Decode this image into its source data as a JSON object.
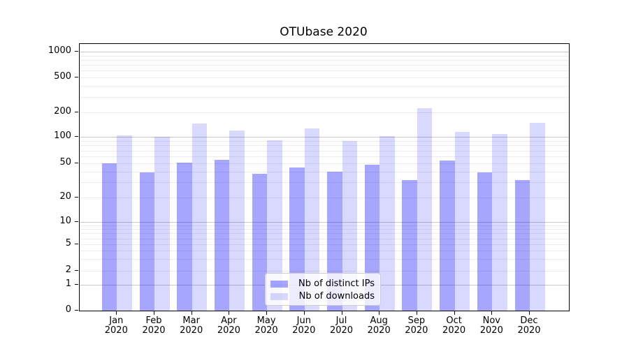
{
  "chart_data": {
    "type": "bar",
    "title": "OTUbase 2020",
    "x_axis": {
      "categories": [
        "Jan",
        "Feb",
        "Mar",
        "Apr",
        "May",
        "Jun",
        "Jul",
        "Aug",
        "Sep",
        "Oct",
        "Nov",
        "Dec"
      ],
      "year_suffix": "2020"
    },
    "y_axis": {
      "scale": "symlog-like",
      "tick_values": [
        0,
        1,
        2,
        5,
        10,
        20,
        50,
        100,
        200,
        500,
        1000
      ],
      "tick_labels": [
        "0",
        "1",
        "2",
        "5",
        "10",
        "20",
        "50",
        "100",
        "200",
        "500",
        "1000"
      ]
    },
    "series": [
      {
        "name": "Nb of distinct IPs",
        "color": "rgba(0,0,255,0.35)",
        "values": [
          50,
          39,
          51,
          55,
          38,
          45,
          40,
          48,
          32,
          54,
          39,
          32
        ]
      },
      {
        "name": "Nb of downloads",
        "color": "rgba(0,0,255,0.15)",
        "values": [
          104,
          101,
          145,
          120,
          91,
          127,
          90,
          102,
          225,
          116,
          108,
          150
        ]
      }
    ],
    "legend_position": "lower center",
    "grid": true,
    "colors": {
      "major_grid": "#c9c9c9",
      "minor_grid": "#ececec",
      "axis": "#000000",
      "legend_border": "#cccccc"
    }
  }
}
